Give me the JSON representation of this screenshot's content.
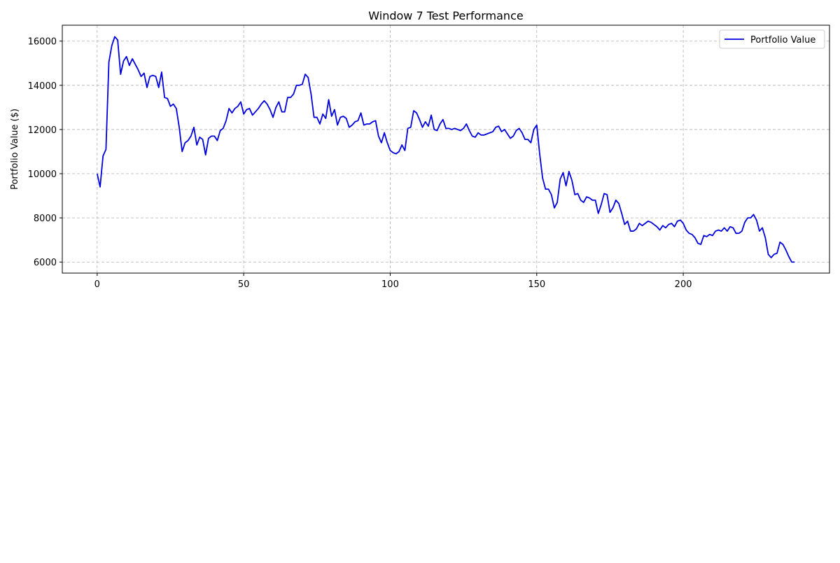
{
  "chart_data": {
    "type": "line",
    "title": "Window 7 Test Performance",
    "ylabel": "Portfolio Value ($)",
    "x": [
      0,
      1,
      2,
      3,
      4,
      5,
      6,
      7,
      8,
      9,
      10,
      11,
      12,
      13,
      14,
      15,
      16,
      17,
      18,
      19,
      20,
      21,
      22,
      23,
      24,
      25,
      26,
      27,
      28,
      29,
      30,
      31,
      32,
      33,
      34,
      35,
      36,
      37,
      38,
      39,
      40,
      41,
      42,
      43,
      44,
      45,
      46,
      47,
      48,
      49,
      50,
      51,
      52,
      53,
      54,
      55,
      56,
      57,
      58,
      59,
      60,
      61,
      62,
      63,
      64,
      65,
      66,
      67,
      68,
      69,
      70,
      71,
      72,
      73,
      74,
      75,
      76,
      77,
      78,
      79,
      80,
      81,
      82,
      83,
      84,
      85,
      86,
      87,
      88,
      89,
      90,
      91,
      92,
      93,
      94,
      95,
      96,
      97,
      98,
      99,
      100,
      101,
      102,
      103,
      104,
      105,
      106,
      107,
      108,
      109,
      110,
      111,
      112,
      113,
      114,
      115,
      116,
      117,
      118,
      119,
      120,
      121,
      122,
      123,
      124,
      125,
      126,
      127,
      128,
      129,
      130,
      131,
      132,
      133,
      134,
      135,
      136,
      137,
      138,
      139,
      140,
      141,
      142,
      143,
      144,
      145,
      146,
      147,
      148,
      149,
      150,
      151,
      152,
      153,
      154,
      155,
      156,
      157,
      158,
      159,
      160,
      161,
      162,
      163,
      164,
      165,
      166,
      167,
      168,
      169,
      170,
      171,
      172,
      173,
      174,
      175,
      176,
      177,
      178,
      179,
      180,
      181,
      182,
      183,
      184,
      185,
      186,
      187,
      188,
      189,
      190,
      191,
      192,
      193,
      194,
      195,
      196,
      197,
      198,
      199,
      200,
      201,
      202,
      203,
      204,
      205,
      206,
      207,
      208,
      209,
      210,
      211,
      212,
      213,
      214,
      215,
      216,
      217,
      218,
      219,
      220,
      221,
      222,
      223,
      224,
      225,
      226,
      227,
      228,
      229,
      230,
      231,
      232,
      233,
      234,
      235,
      236,
      237,
      238
    ],
    "series": [
      {
        "name": "Portfolio Value",
        "color": "#0000dd",
        "values": [
          10000,
          9400,
          10800,
          11100,
          15050,
          15800,
          16200,
          16050,
          14500,
          15100,
          15300,
          14900,
          15200,
          14950,
          14700,
          14400,
          14550,
          13900,
          14400,
          14450,
          14400,
          13900,
          14600,
          13450,
          13400,
          13050,
          13150,
          12950,
          12100,
          11000,
          11400,
          11500,
          11700,
          12100,
          11300,
          11650,
          11550,
          10850,
          11600,
          11700,
          11700,
          11500,
          11950,
          12050,
          12400,
          12950,
          12750,
          12950,
          13050,
          13250,
          12700,
          12900,
          12950,
          12650,
          12800,
          12950,
          13150,
          13300,
          13150,
          12900,
          12550,
          13000,
          13250,
          12800,
          12800,
          13450,
          13450,
          13600,
          14000,
          14000,
          14050,
          14500,
          14350,
          13600,
          12550,
          12550,
          12250,
          12700,
          12500,
          13350,
          12600,
          12900,
          12200,
          12550,
          12600,
          12500,
          12100,
          12200,
          12350,
          12400,
          12750,
          12200,
          12250,
          12250,
          12350,
          12400,
          11700,
          11400,
          11850,
          11400,
          11050,
          10950,
          10900,
          11000,
          11300,
          11050,
          12050,
          12100,
          12850,
          12750,
          12450,
          12100,
          12350,
          12150,
          12650,
          12000,
          11950,
          12250,
          12450,
          12050,
          12050,
          12000,
          12050,
          12000,
          11950,
          12050,
          12250,
          11950,
          11700,
          11650,
          11850,
          11750,
          11750,
          11800,
          11850,
          11900,
          12100,
          12150,
          11900,
          12000,
          11800,
          11600,
          11700,
          11950,
          12050,
          11850,
          11550,
          11550,
          11400,
          12000,
          12200,
          10900,
          9800,
          9300,
          9300,
          9050,
          8450,
          8700,
          9750,
          10050,
          9450,
          10100,
          9700,
          9050,
          9100,
          8800,
          8700,
          8950,
          8900,
          8800,
          8800,
          8200,
          8600,
          9100,
          9050,
          8250,
          8450,
          8800,
          8650,
          8200,
          7700,
          7850,
          7400,
          7400,
          7500,
          7750,
          7650,
          7750,
          7850,
          7800,
          7700,
          7600,
          7450,
          7650,
          7550,
          7700,
          7750,
          7600,
          7850,
          7900,
          7750,
          7450,
          7300,
          7250,
          7100,
          6850,
          6800,
          7200,
          7150,
          7250,
          7200,
          7400,
          7450,
          7400,
          7550,
          7400,
          7600,
          7550,
          7300,
          7300,
          7400,
          7800,
          8000,
          8000,
          8150,
          7900,
          7400,
          7550,
          7100,
          6350,
          6200,
          6350,
          6400,
          6900,
          6800,
          6550,
          6250,
          6000,
          6000
        ]
      }
    ],
    "xlim": [
      -11.9,
      249.9
    ],
    "ylim": [
      5500,
      16720
    ],
    "xticks": [
      0,
      50,
      100,
      150,
      200
    ],
    "yticks": [
      6000,
      8000,
      10000,
      12000,
      14000,
      16000
    ],
    "grid": true,
    "legend": "upper right"
  }
}
